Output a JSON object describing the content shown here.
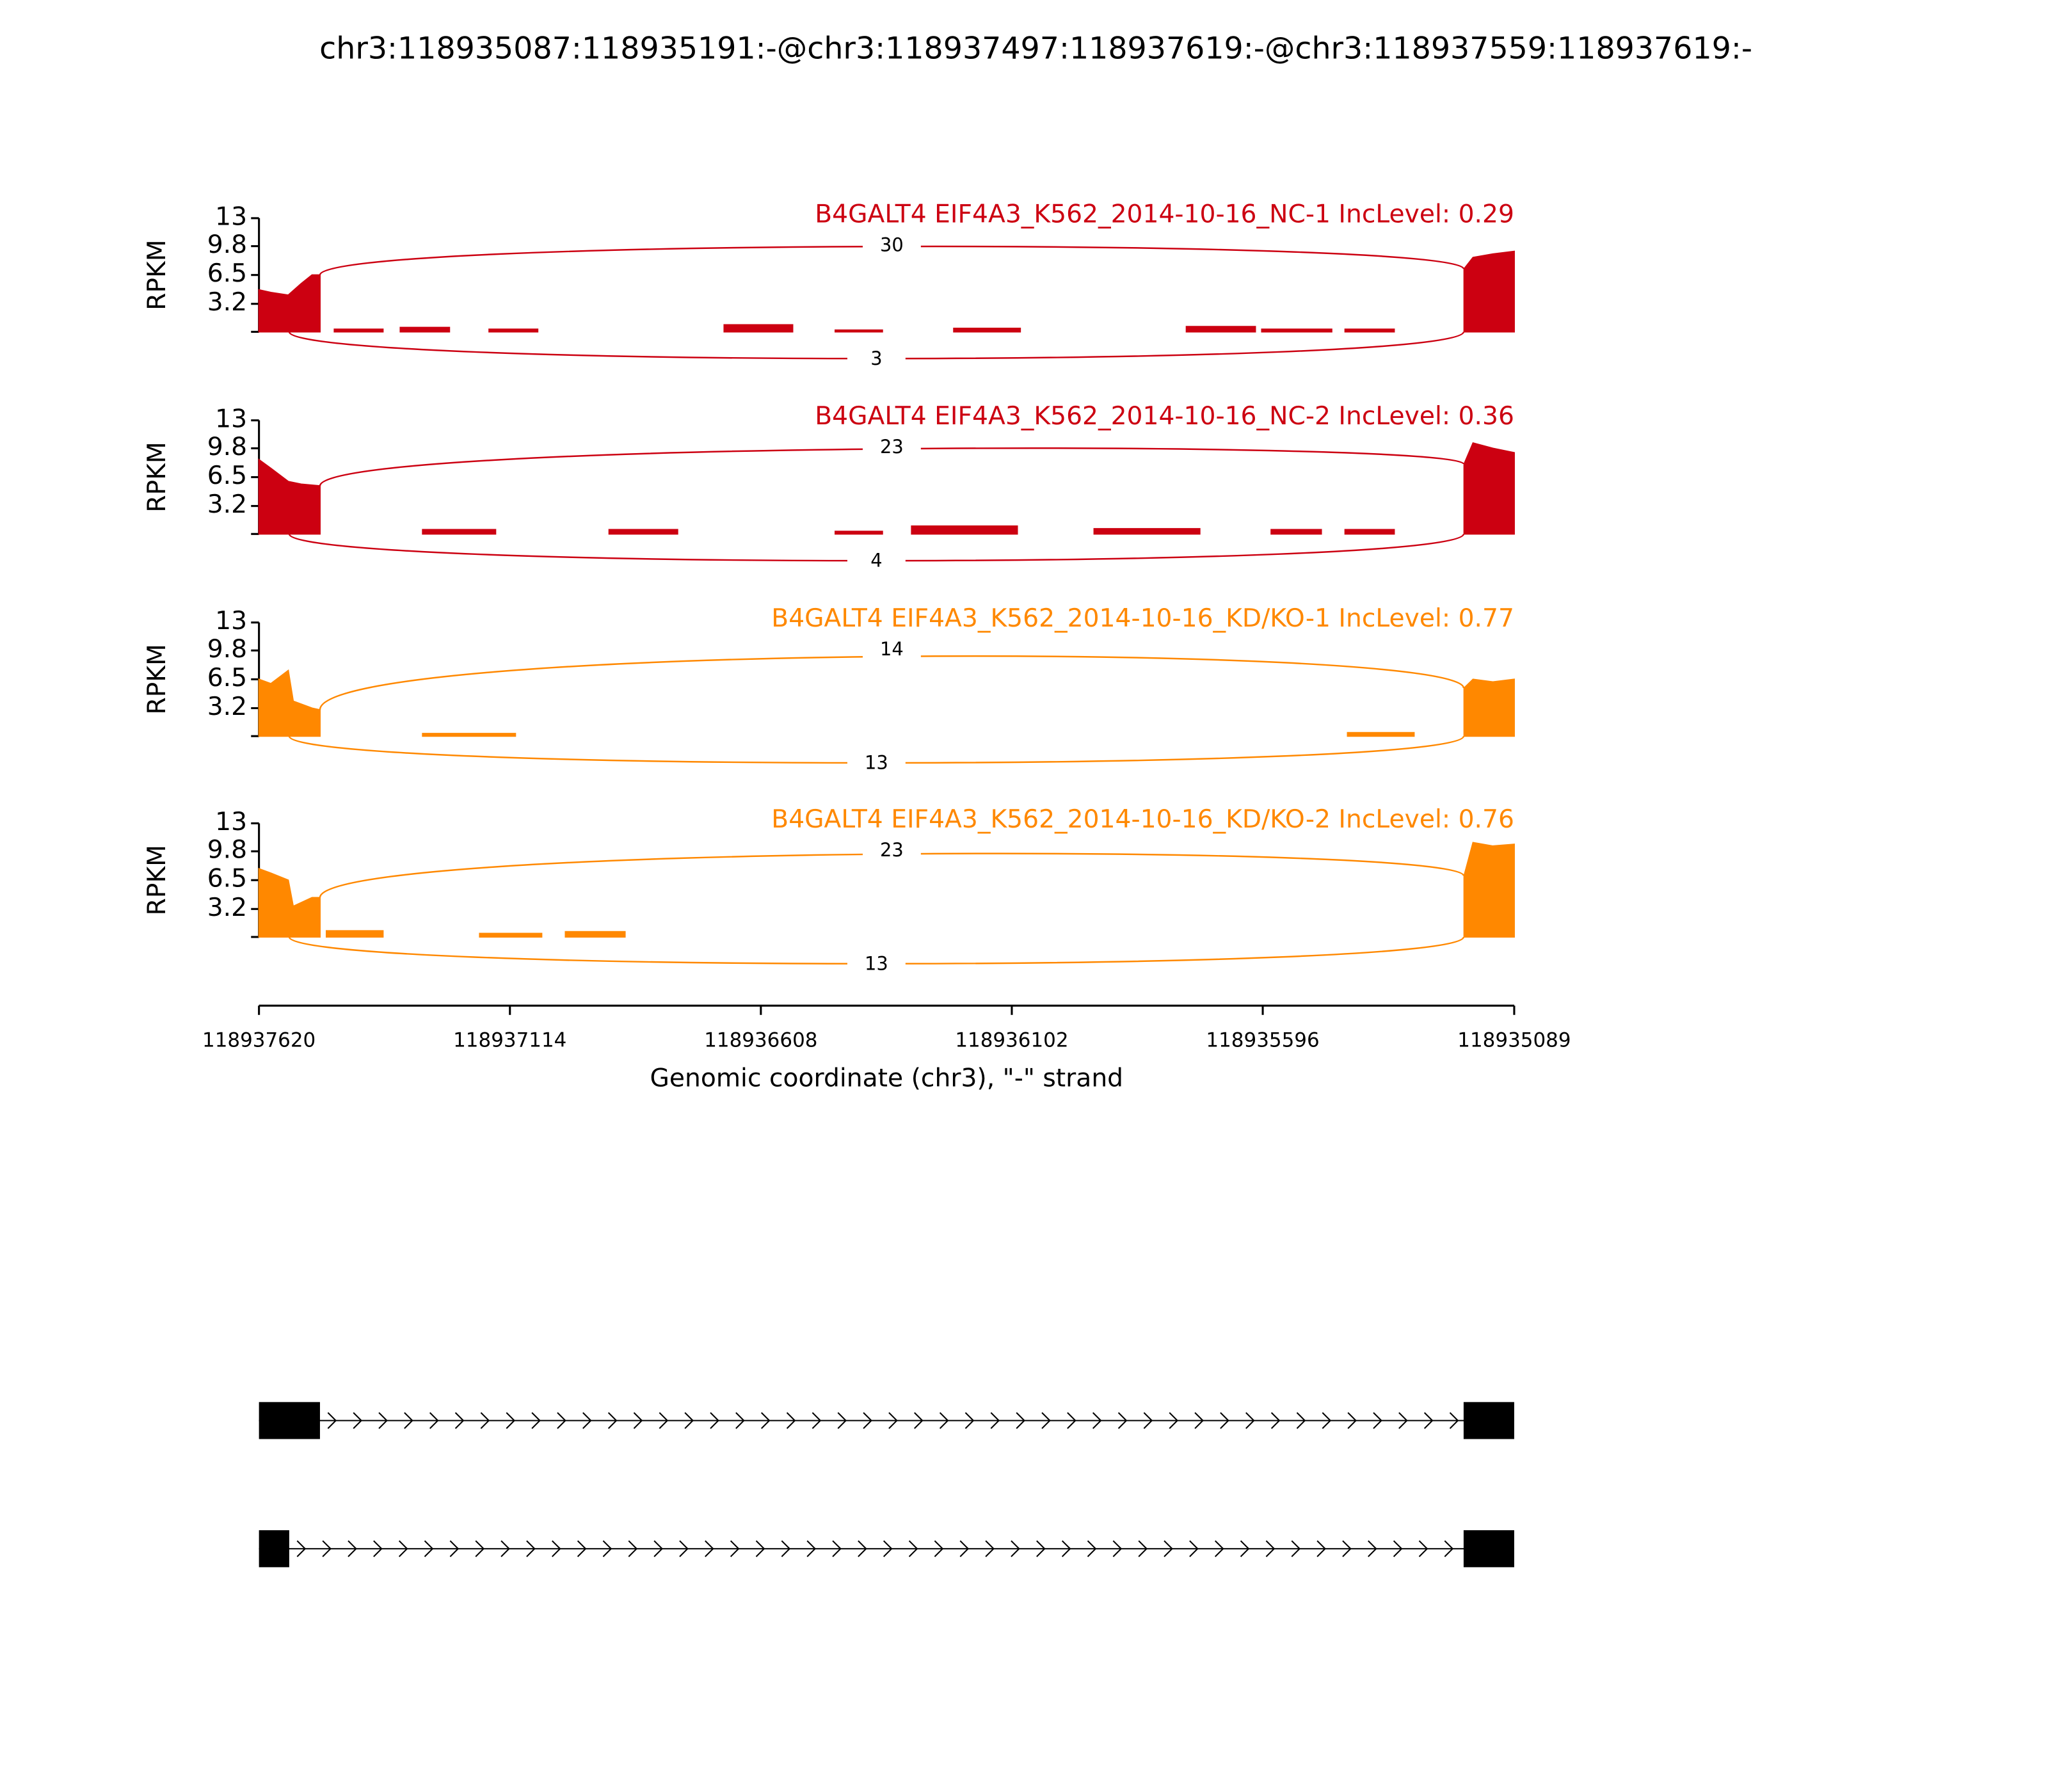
{
  "chart_data": {
    "type": "sashimi",
    "title": "chr3:118935087:118935191:-@chr3:118937497:118937619:-@chr3:118937559:118937619:-",
    "xlabel": "Genomic coordinate (chr3), \"-\" strand",
    "ylabel": "RPKM",
    "xlim": [
      118937620,
      118935089
    ],
    "xticks": [
      118937620,
      118937114,
      118936608,
      118936102,
      118935596,
      118935089
    ],
    "ylim": [
      0,
      13
    ],
    "yticks": [
      3.2,
      6.5,
      9.8,
      13
    ],
    "panels": [
      {
        "title": "B4GALT4 EIF4A3_K562_2014-10-16_NC-1 IncLevel: 0.29",
        "color": "#cc0011",
        "x": [
          118937620,
          118937596,
          118937561,
          118937535,
          118937513,
          118937497,
          null,
          118937468,
          118937370,
          null,
          118937335,
          118937236,
          null,
          118937156,
          118937058,
          null,
          118936682,
          118936544,
          null,
          118936458,
          118936363,
          null,
          118936219,
          118936085,
          null,
          118935750,
          118935611,
          null,
          118935598,
          118935457,
          null,
          118935430,
          118935331,
          null,
          118935190,
          118935172,
          118935132,
          118935089
        ],
        "values": [
          4.8,
          4.5,
          4.2,
          5.5,
          6.5,
          6.5,
          null,
          0.3,
          0.3,
          null,
          0.5,
          0.5,
          null,
          0.3,
          0.3,
          null,
          0.8,
          0.8,
          null,
          0.2,
          0.2,
          null,
          0.4,
          0.4,
          null,
          0.6,
          0.6,
          null,
          0.3,
          0.3,
          null,
          0.3,
          0.3,
          null,
          7.2,
          8.5,
          8.9,
          9.2
        ],
        "junctions": [
          {
            "count": 30,
            "start": 118937497,
            "end": 118935191
          },
          {
            "count": 3,
            "start": 118937559,
            "end": 118935191
          }
        ]
      },
      {
        "title": "B4GALT4 EIF4A3_K562_2014-10-16_NC-2 IncLevel: 0.36",
        "color": "#cc0011",
        "x": [
          118937620,
          118937596,
          118937561,
          118937535,
          118937497,
          null,
          118937290,
          118937143,
          null,
          118936914,
          118936776,
          null,
          118936458,
          118936363,
          null,
          118936304,
          118936091,
          null,
          118935936,
          118935723,
          null,
          118935579,
          118935478,
          null,
          118935430,
          118935331,
          null,
          118935190,
          118935172,
          118935132,
          118935089
        ],
        "values": [
          8.5,
          7.5,
          6.0,
          5.7,
          5.5,
          null,
          0.5,
          0.5,
          null,
          0.5,
          0.5,
          null,
          0.3,
          0.3,
          null,
          0.9,
          0.9,
          null,
          0.6,
          0.6,
          null,
          0.5,
          0.5,
          null,
          0.5,
          0.5,
          null,
          8,
          10.4,
          9.8,
          9.3
        ],
        "junctions": [
          {
            "count": 23,
            "start": 118937497,
            "end": 118935191
          },
          {
            "count": 4,
            "start": 118937559,
            "end": 118935191
          }
        ]
      },
      {
        "title": "B4GALT4 EIF4A3_K562_2014-10-16_KD/KO-1 IncLevel: 0.77",
        "color": "#ff8800",
        "x": [
          118937620,
          118937596,
          118937561,
          118937551,
          118937513,
          118937497,
          null,
          118937290,
          118937103,
          null,
          118935425,
          118935291,
          null,
          118935190,
          118935172,
          118935132,
          118935089
        ],
        "values": [
          6.5,
          6.0,
          7.5,
          4.0,
          3.2,
          3.0,
          null,
          0.3,
          0.3,
          null,
          0.4,
          0.4,
          null,
          5.5,
          6.5,
          6.2,
          6.5
        ],
        "junctions": [
          {
            "count": 14,
            "start": 118937497,
            "end": 118935191
          },
          {
            "count": 13,
            "start": 118937559,
            "end": 118935191
          }
        ]
      },
      {
        "title": "B4GALT4 EIF4A3_K562_2014-10-16_KD/KO-2 IncLevel: 0.76",
        "color": "#ff8800",
        "x": [
          118937620,
          118937596,
          118937561,
          118937551,
          118937513,
          118937497,
          null,
          118937484,
          118937370,
          null,
          118937175,
          118937050,
          null,
          118937002,
          118936882,
          null,
          118935190,
          118935172,
          118935132,
          118935089
        ],
        "values": [
          7.8,
          7.3,
          6.5,
          3.5,
          4.5,
          4.5,
          null,
          0.7,
          0.7,
          null,
          0.4,
          0.4,
          null,
          0.6,
          0.6,
          null,
          7,
          10.8,
          10.4,
          10.6
        ],
        "junctions": [
          {
            "count": 23,
            "start": 118937497,
            "end": 118935191
          },
          {
            "count": 13,
            "start": 118937559,
            "end": 118935191
          }
        ]
      }
    ],
    "transcripts": [
      {
        "exons": [
          [
            118937620,
            118937497
          ],
          [
            118935191,
            118935089
          ]
        ]
      },
      {
        "exons": [
          [
            118937620,
            118937559
          ],
          [
            118935191,
            118935089
          ]
        ]
      }
    ]
  }
}
